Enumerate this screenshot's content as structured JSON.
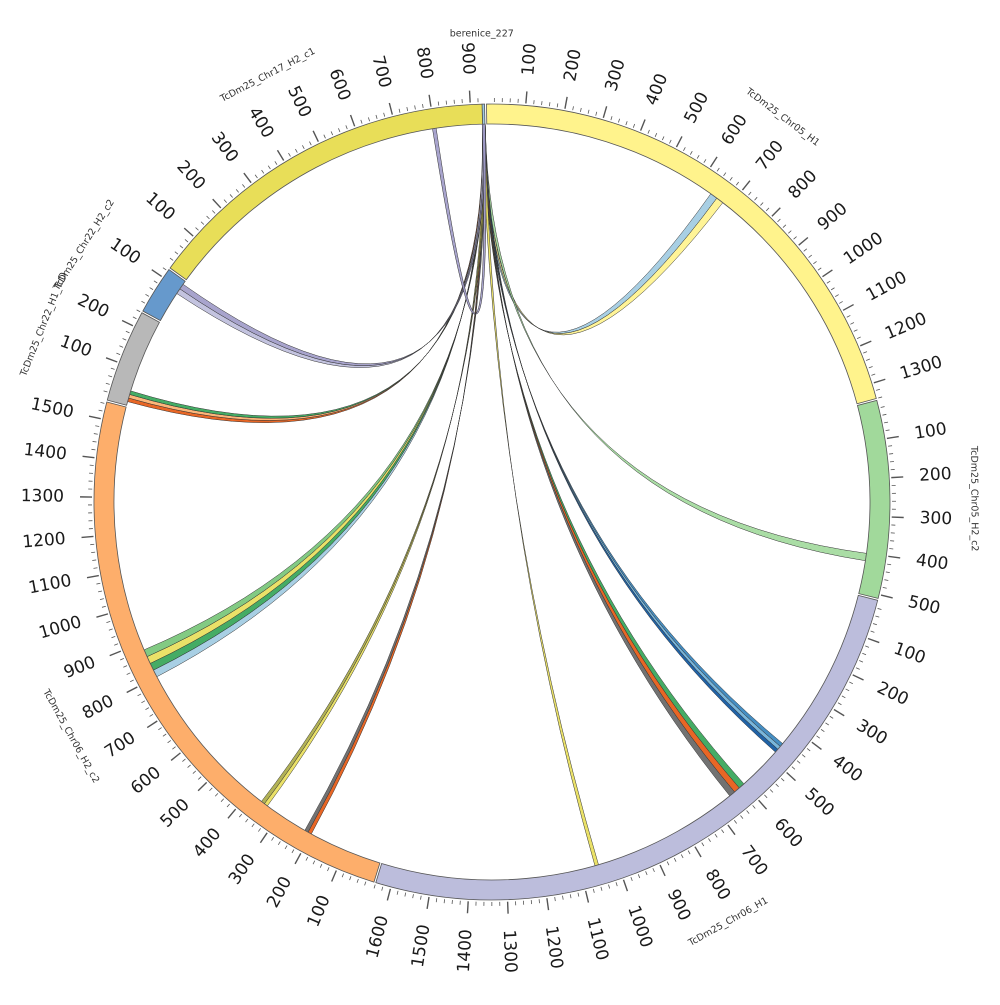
{
  "chart_data": {
    "type": "chord",
    "scaffold_label": "berenice_227",
    "segments": [
      {
        "id": "berenice",
        "label": "berenice_227",
        "color": "#9ecae1",
        "tick_labels": []
      },
      {
        "id": "chr05h1",
        "label": "TcDm25_Chr05_H1",
        "color": "#fff38c",
        "tick_labels": [
          "100",
          "200",
          "300",
          "400",
          "500",
          "600",
          "700",
          "800",
          "900",
          "1000",
          "1100",
          "1200",
          "1300"
        ]
      },
      {
        "id": "chr05h2",
        "label": "TcDm25_Chr05_H2_c2",
        "color": "#a1d99b",
        "tick_labels": [
          "100",
          "200",
          "300",
          "400",
          "500"
        ]
      },
      {
        "id": "chr06h1",
        "label": "TcDm25_Chr06_H1",
        "color": "#bcbddc",
        "tick_labels": [
          "100",
          "200",
          "300",
          "400",
          "500",
          "600",
          "700",
          "800",
          "900",
          "1000",
          "1100",
          "1200",
          "1300",
          "1400",
          "1500",
          "1600"
        ]
      },
      {
        "id": "chr06h2",
        "label": "TcDm25_Chr06_H2_c2",
        "color": "#fdae6b",
        "tick_labels": [
          "100",
          "200",
          "300",
          "400",
          "500",
          "600",
          "700",
          "800",
          "900",
          "1000",
          "1100",
          "1200",
          "1300",
          "1400",
          "1500"
        ]
      },
      {
        "id": "chr22h1",
        "label": "TcDm25_Chr22_H1_TcD",
        "color": "#b8b8b8",
        "tick_labels": [
          "100",
          "200"
        ]
      },
      {
        "id": "chr22h2",
        "label": "TcDm25_Chr22_H2_c2",
        "color": "#6699cc",
        "tick_labels": [
          "100"
        ]
      },
      {
        "id": "chr17h2",
        "label": "TcDm25_Chr17_H2_c1",
        "color": "#e8de58",
        "tick_labels": [
          "100",
          "200",
          "300",
          "400",
          "500",
          "600",
          "700",
          "800",
          "900"
        ]
      }
    ],
    "links": [
      {
        "target": "chr05h1",
        "target_range": [
          640,
          680
        ],
        "colors": [
          "#9ecae1",
          "#fff38c"
        ]
      },
      {
        "target": "chr05h2",
        "target_range": [
          400,
          420
        ],
        "colors": [
          "#a1d99b"
        ]
      },
      {
        "target": "chr06h1",
        "target_range": [
          450,
          480
        ],
        "colors": [
          "#3182bd",
          "#6baed6",
          "#08519c"
        ]
      },
      {
        "target": "chr06h1",
        "target_range": [
          600,
          650
        ],
        "colors": [
          "#31a354",
          "#e6550d",
          "#636363"
        ]
      },
      {
        "target": "chr06h1",
        "target_range": [
          1050,
          1060
        ],
        "colors": [
          "#e8de58"
        ]
      },
      {
        "target": "chr06h2",
        "target_range": [
          200,
          220
        ],
        "colors": [
          "#e6550d",
          "#636363"
        ]
      },
      {
        "target": "chr06h2",
        "target_range": [
          340,
          360
        ],
        "colors": [
          "#e8de58",
          "#aaaa44"
        ]
      },
      {
        "target": "chr06h2",
        "target_range": [
          800,
          880
        ],
        "colors": [
          "#9ecae1",
          "#31a354",
          "#e8de58",
          "#74c476"
        ]
      },
      {
        "target": "chr22h1",
        "target_range": [
          10,
          40
        ],
        "colors": [
          "#e6550d",
          "#fdae6b",
          "#31a354"
        ]
      },
      {
        "target": "chr22h2",
        "target_range": [
          85,
          115
        ],
        "colors": [
          "#bcbddc",
          "#9e9ac8"
        ]
      },
      {
        "target": "chr17h2",
        "target_range": [
          795,
          805
        ],
        "colors": [
          "#9e9ac8"
        ]
      }
    ]
  }
}
